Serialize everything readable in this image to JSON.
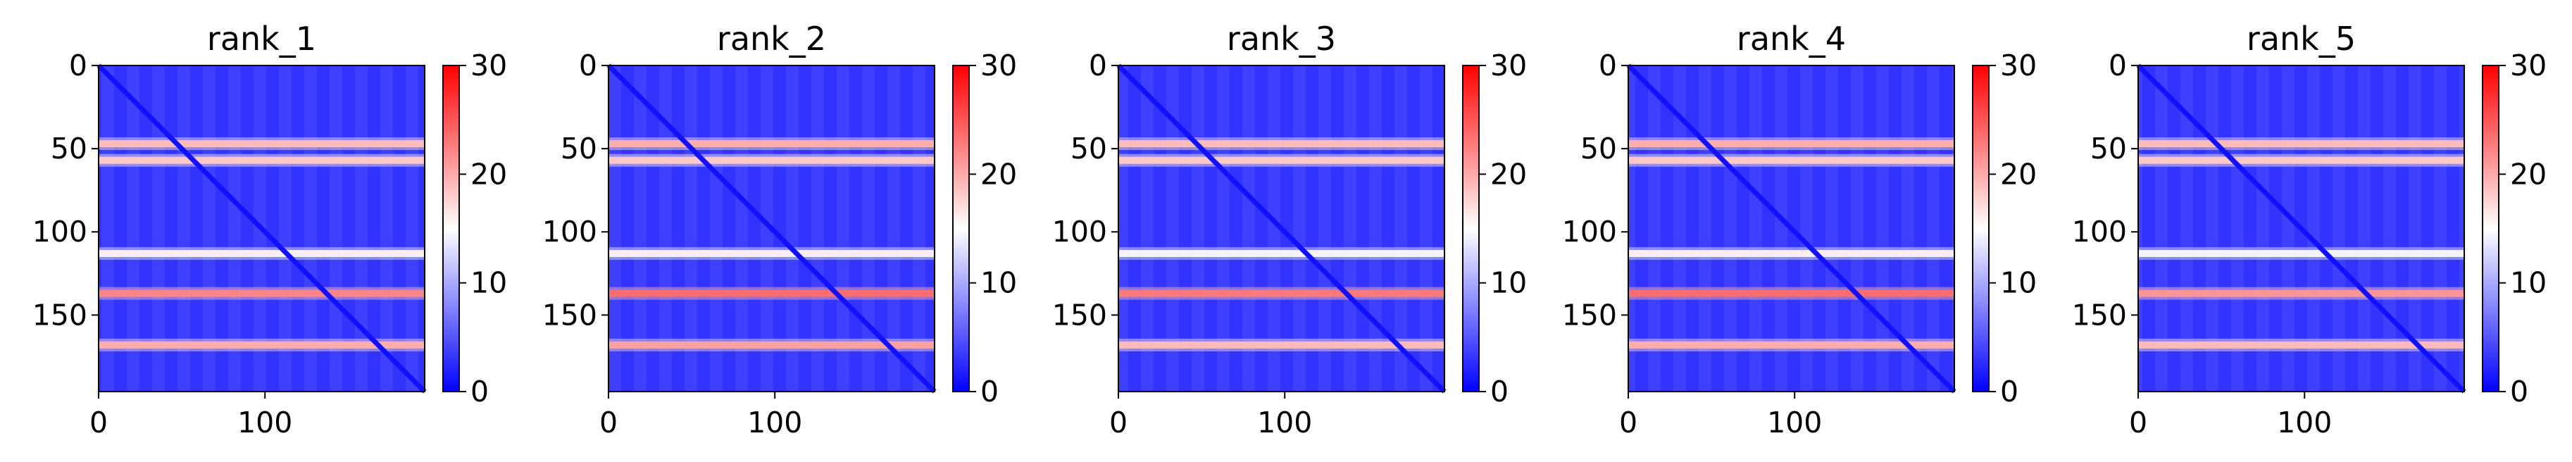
{
  "chart_data": [
    {
      "type": "heatmap",
      "title": "rank_1",
      "xlabel": "",
      "ylabel": "",
      "xlim": [
        0,
        196
      ],
      "ylim": [
        196,
        0
      ],
      "x_ticks": [
        0,
        100
      ],
      "y_ticks": [
        0,
        50,
        100,
        150
      ],
      "colorbar": {
        "colormap": "bwr",
        "vmin": 0,
        "vmax": 30,
        "ticks": [
          0,
          10,
          20,
          30
        ]
      },
      "high_value_rows": [
        {
          "row": 47,
          "value": 21
        },
        {
          "row": 57,
          "value": 20
        },
        {
          "row": 113,
          "value": 16
        },
        {
          "row": 137,
          "value": 25
        },
        {
          "row": 168,
          "value": 22
        }
      ],
      "diagonal_value": 1
    },
    {
      "type": "heatmap",
      "title": "rank_2",
      "xlabel": "",
      "ylabel": "",
      "xlim": [
        0,
        196
      ],
      "ylim": [
        196,
        0
      ],
      "x_ticks": [
        0,
        100
      ],
      "y_ticks": [
        0,
        50,
        100,
        150
      ],
      "colorbar": {
        "colormap": "bwr",
        "vmin": 0,
        "vmax": 30,
        "ticks": [
          0,
          10,
          20,
          30
        ]
      },
      "high_value_rows": [
        {
          "row": 47,
          "value": 22
        },
        {
          "row": 57,
          "value": 20
        },
        {
          "row": 113,
          "value": 16
        },
        {
          "row": 137,
          "value": 27
        },
        {
          "row": 168,
          "value": 23
        }
      ],
      "diagonal_value": 1
    },
    {
      "type": "heatmap",
      "title": "rank_3",
      "xlabel": "",
      "ylabel": "",
      "xlim": [
        0,
        196
      ],
      "ylim": [
        196,
        0
      ],
      "x_ticks": [
        0,
        100
      ],
      "y_ticks": [
        0,
        50,
        100,
        150
      ],
      "colorbar": {
        "colormap": "bwr",
        "vmin": 0,
        "vmax": 30,
        "ticks": [
          0,
          10,
          20,
          30
        ]
      },
      "high_value_rows": [
        {
          "row": 47,
          "value": 21
        },
        {
          "row": 57,
          "value": 20
        },
        {
          "row": 113,
          "value": 15
        },
        {
          "row": 137,
          "value": 26
        },
        {
          "row": 168,
          "value": 21
        }
      ],
      "diagonal_value": 1
    },
    {
      "type": "heatmap",
      "title": "rank_4",
      "xlabel": "",
      "ylabel": "",
      "xlim": [
        0,
        196
      ],
      "ylim": [
        196,
        0
      ],
      "x_ticks": [
        0,
        100
      ],
      "y_ticks": [
        0,
        50,
        100,
        150
      ],
      "colorbar": {
        "colormap": "bwr",
        "vmin": 0,
        "vmax": 30,
        "ticks": [
          0,
          10,
          20,
          30
        ]
      },
      "high_value_rows": [
        {
          "row": 47,
          "value": 22
        },
        {
          "row": 57,
          "value": 20
        },
        {
          "row": 113,
          "value": 16
        },
        {
          "row": 137,
          "value": 27
        },
        {
          "row": 168,
          "value": 22
        }
      ],
      "diagonal_value": 1
    },
    {
      "type": "heatmap",
      "title": "rank_5",
      "xlabel": "",
      "ylabel": "",
      "xlim": [
        0,
        196
      ],
      "ylim": [
        196,
        0
      ],
      "x_ticks": [
        0,
        100
      ],
      "y_ticks": [
        0,
        50,
        100,
        150
      ],
      "colorbar": {
        "colormap": "bwr",
        "vmin": 0,
        "vmax": 30,
        "ticks": [
          0,
          10,
          20,
          30
        ]
      },
      "high_value_rows": [
        {
          "row": 47,
          "value": 21
        },
        {
          "row": 57,
          "value": 20
        },
        {
          "row": 113,
          "value": 15
        },
        {
          "row": 137,
          "value": 24
        },
        {
          "row": 168,
          "value": 21
        }
      ],
      "diagonal_value": 1
    }
  ],
  "colors": {
    "low": "#0000ff",
    "mid": "#ffffff",
    "high": "#ff0000",
    "axis": "#000000"
  }
}
